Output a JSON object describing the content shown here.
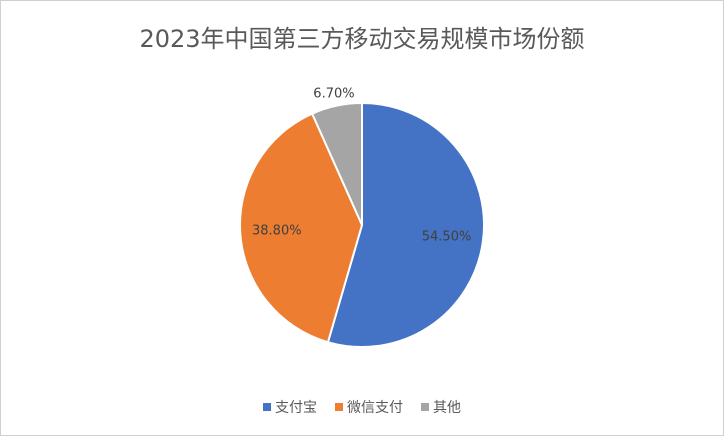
{
  "chart_data": {
    "type": "pie",
    "title": "2023年中国第三方移动交易规模市场份额",
    "categories": [
      "支付宝",
      "微信支付",
      "其他"
    ],
    "values": [
      54.5,
      38.8,
      6.7
    ],
    "value_labels": [
      "54.50%",
      "38.80%",
      "6.70%"
    ],
    "colors": [
      "#4472c4",
      "#ed7d31",
      "#a5a5a5"
    ],
    "legend": "bottom"
  }
}
